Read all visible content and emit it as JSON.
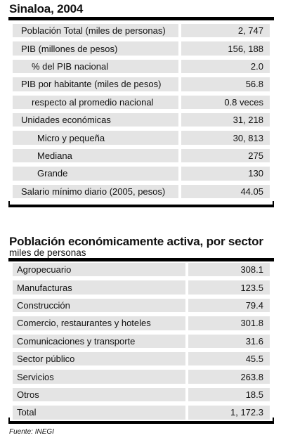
{
  "section1": {
    "title": "Sinaloa, 2004",
    "rows": [
      {
        "label": "Población Total (miles de personas)",
        "value": "2, 747"
      },
      {
        "label": "PIB (millones de pesos)",
        "value": "156, 188"
      },
      {
        "label": "% del PIB nacional",
        "value": "2.0"
      },
      {
        "label": "PIB por habitante (miles de pesos)",
        "value": "56.8"
      },
      {
        "label": "respecto al promedio nacional",
        "value": "0.8 veces"
      },
      {
        "label": "Unidades económicas",
        "value": "31, 218"
      },
      {
        "label": "Micro y pequeña",
        "value": "30, 813"
      },
      {
        "label": "Mediana",
        "value": "275"
      },
      {
        "label": "Grande",
        "value": "130"
      },
      {
        "label": "Salario mínimo diario (2005, pesos)",
        "value": "44.05"
      }
    ]
  },
  "section2": {
    "title": "Población económicamente activa, por sector",
    "subtitle": "miles de personas",
    "rows": [
      {
        "label": "Agropecuario",
        "value": "308.1"
      },
      {
        "label": "Manufacturas",
        "value": "123.5"
      },
      {
        "label": "Construcción",
        "value": "79.4"
      },
      {
        "label": "Comercio, restaurantes y hoteles",
        "value": "301.8"
      },
      {
        "label": "Comunicaciones y transporte",
        "value": "31.6"
      },
      {
        "label": "Sector público",
        "value": "45.5"
      },
      {
        "label": "Servicios",
        "value": "263.8"
      },
      {
        "label": "Otros",
        "value": "18.5"
      },
      {
        "label": "Total",
        "value": "1, 172.3"
      }
    ]
  },
  "source": "Fuente: INEGI"
}
